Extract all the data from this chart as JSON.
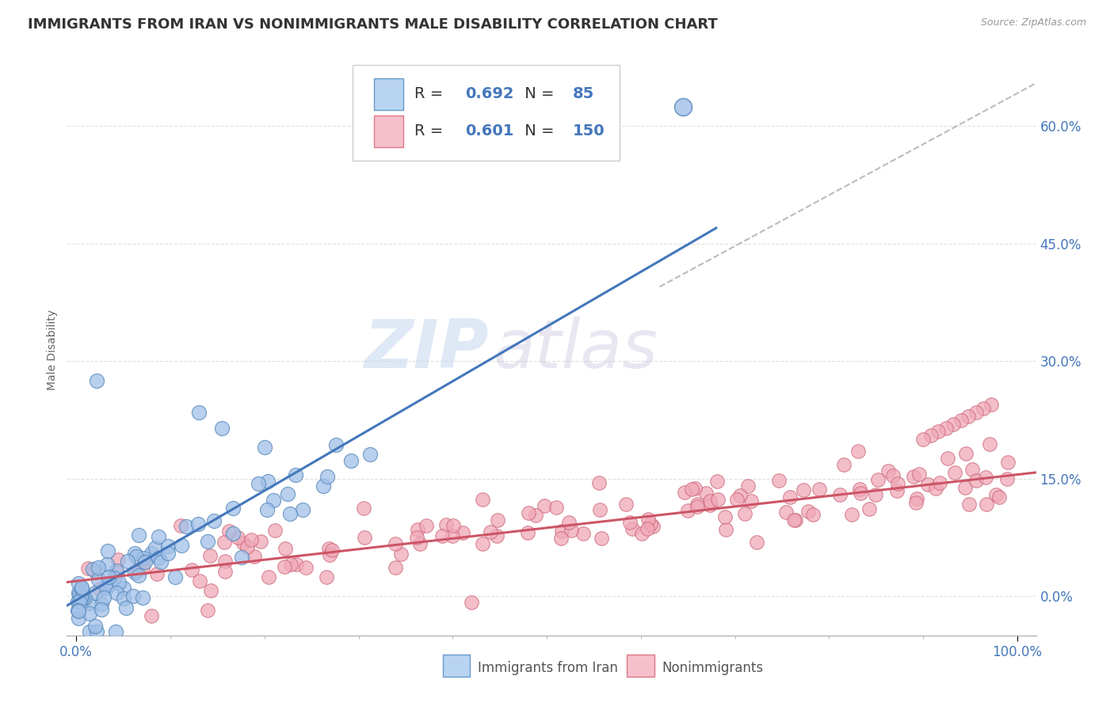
{
  "title": "IMMIGRANTS FROM IRAN VS NONIMMIGRANTS MALE DISABILITY CORRELATION CHART",
  "source": "Source: ZipAtlas.com",
  "ylabel": "Male Disability",
  "watermark_zip": "ZIP",
  "watermark_atlas": "atlas",
  "series": [
    {
      "label": "Immigrants from Iran",
      "R": 0.692,
      "N": 85,
      "patch_color": "#b8d4f0",
      "patch_edge": "#6699cc",
      "scatter_face": "#a0c0e8",
      "scatter_edge": "#5588bb",
      "line_color": "#4477bb"
    },
    {
      "label": "Nonimmigrants",
      "R": 0.601,
      "N": 150,
      "patch_color": "#f5c0cc",
      "patch_edge": "#dd7788",
      "scatter_face": "#f0a8b8",
      "scatter_edge": "#cc6677",
      "line_color": "#cc5566"
    }
  ],
  "xlim": [
    -0.01,
    1.02
  ],
  "ylim": [
    -0.05,
    0.68
  ],
  "yticks": [
    0.0,
    0.15,
    0.3,
    0.45,
    0.6
  ],
  "ytick_labels": [
    "0.0%",
    "15.0%",
    "30.0%",
    "45.0%",
    "60.0%"
  ],
  "xticks": [
    0.0,
    1.0
  ],
  "xtick_labels": [
    "0.0%",
    "100.0%"
  ],
  "background_color": "#ffffff",
  "grid_color": "#dddddd",
  "title_fontsize": 13,
  "legend_fontsize": 14,
  "axis_label_fontsize": 10,
  "tick_fontsize": 12,
  "blue_line": {
    "x0": -0.01,
    "y0": -0.012,
    "x1": 0.68,
    "y1": 0.47
  },
  "pink_line": {
    "x0": -0.01,
    "y0": 0.018,
    "x1": 1.02,
    "y1": 0.158
  },
  "dash_line": {
    "x0": 0.62,
    "y0": 0.395,
    "x1": 1.02,
    "y1": 0.655
  }
}
